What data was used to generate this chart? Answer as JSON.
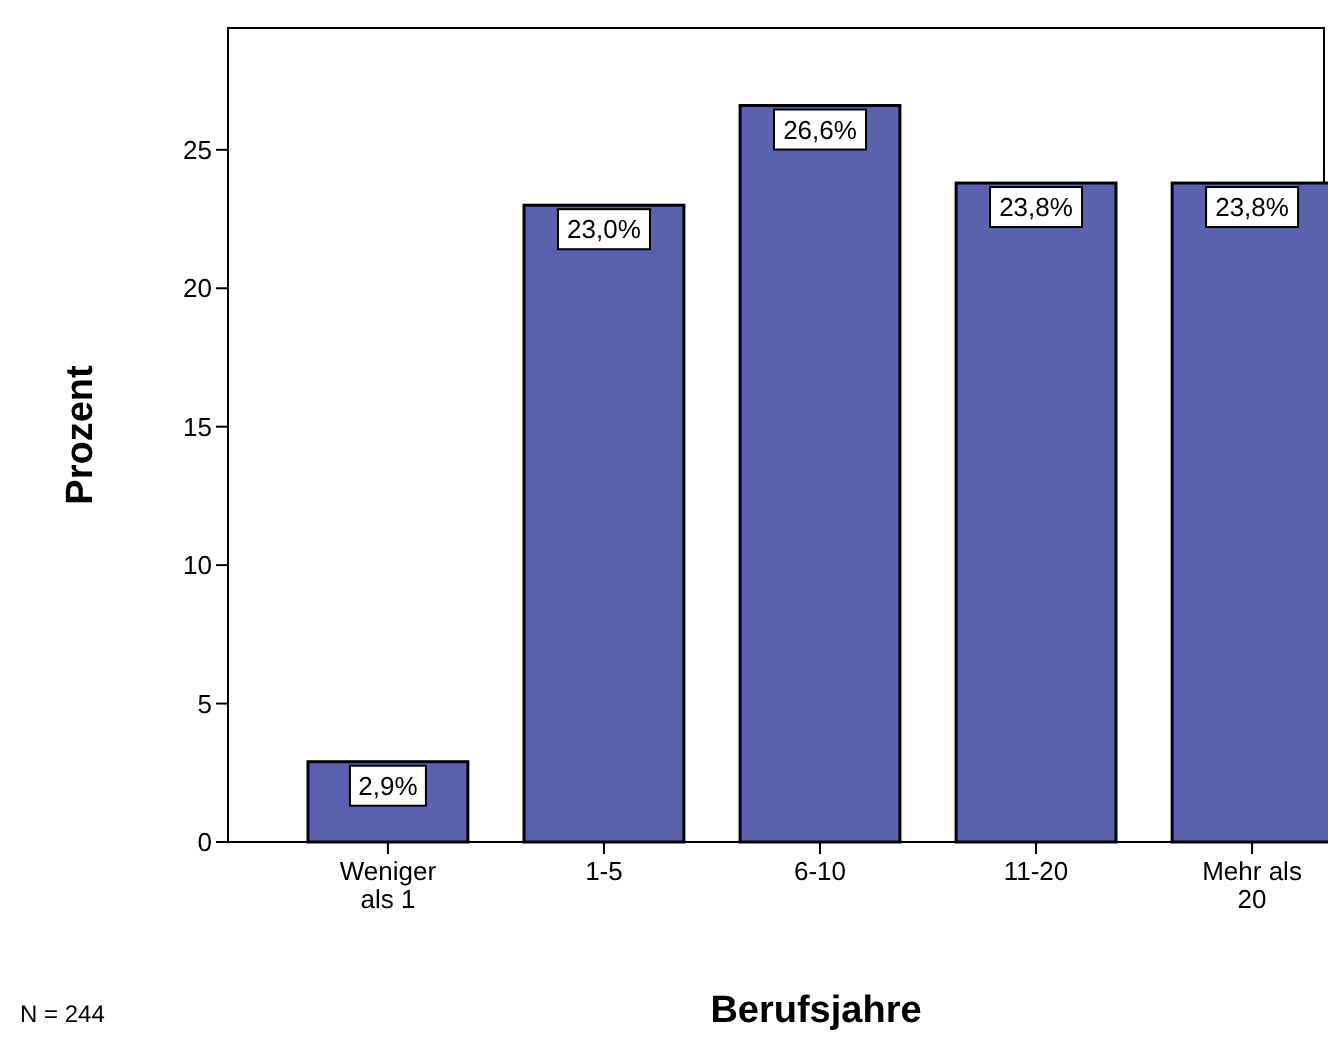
{
  "chart_data": {
    "type": "bar",
    "xlabel": "Berufsjahre",
    "ylabel": "Prozent",
    "categories": [
      "Weniger als 1",
      "1-5",
      "6-10",
      "11-20",
      "Mehr als 20"
    ],
    "values": [
      2.9,
      23.0,
      26.6,
      23.8,
      23.8
    ],
    "value_labels": [
      "2,9%",
      "23,0%",
      "26,6%",
      "23,8%",
      "23,8%"
    ],
    "color": "#5a62b0",
    "ylim": [
      0,
      29.4
    ],
    "yticks": [
      0,
      5,
      10,
      15,
      20,
      25
    ],
    "grid": false,
    "annotations": [
      "N = 244"
    ]
  }
}
